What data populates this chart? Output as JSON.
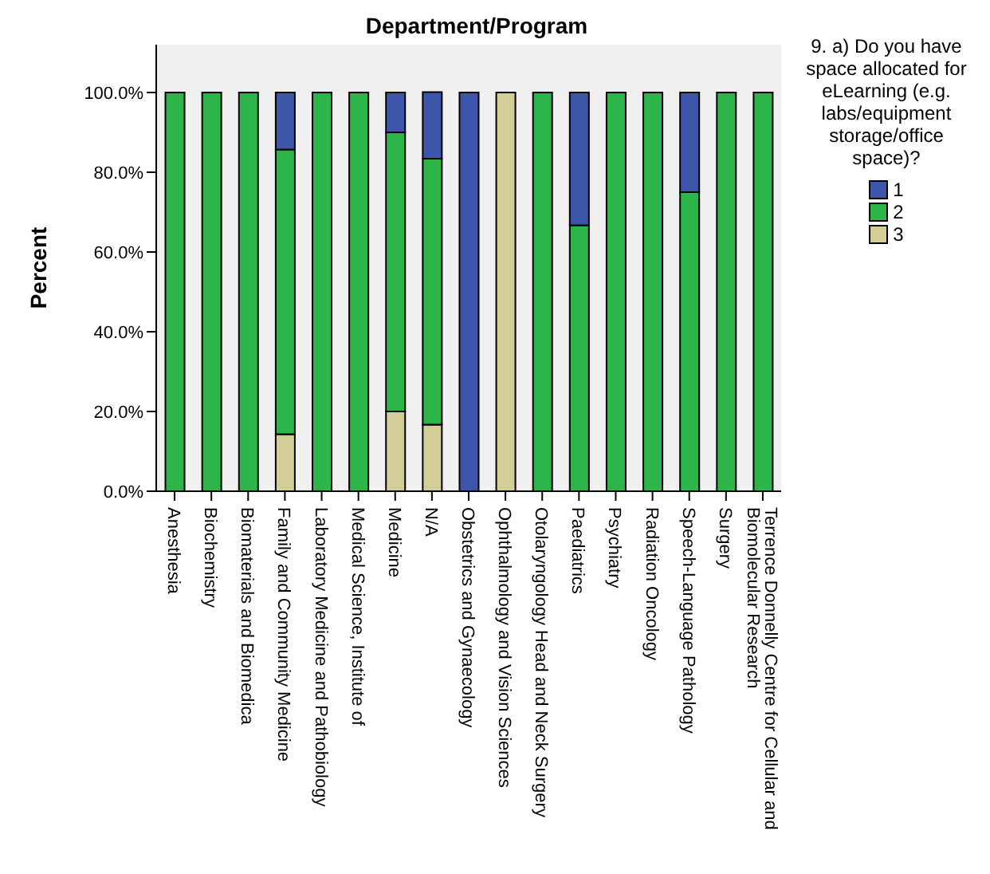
{
  "chart_data": {
    "type": "bar",
    "title": "Department/Program",
    "ylabel": "Percent",
    "legend_title": "9. a) Do you have space allocated for eLearning (e.g. labs/equipment storage/office space)?",
    "categories": [
      "Anesthesia",
      "Biochemistry",
      "Biomaterials and Biomedica",
      "Family and Community Medicine",
      "Laboratory Medicine and Pathobiology",
      "Medical Science, Institute of",
      "Medicine",
      "N/A",
      "Obstetrics and Gynaecology",
      "Ophthalmology and Vision Sciences",
      "Otolaryngology Head and Neck Surgery",
      "Paediatrics",
      "Psychiatry",
      "Radiation Oncology",
      "Speech-Language Pathology",
      "Surgery",
      "Terrence Donnelly Centre for Cellular and Biomolecular Research"
    ],
    "stacked": true,
    "series": [
      {
        "name": "3",
        "color": "#d3ce97",
        "values": [
          0,
          0,
          0,
          14.3,
          0,
          0,
          20,
          16.7,
          0,
          100,
          0,
          0,
          0,
          0,
          0,
          0,
          0
        ]
      },
      {
        "name": "2",
        "color": "#2eb54a",
        "values": [
          100,
          100,
          100,
          71.4,
          100,
          100,
          70,
          66.7,
          0,
          0,
          100,
          66.7,
          100,
          100,
          75,
          100,
          100
        ]
      },
      {
        "name": "1",
        "color": "#3d56aa",
        "values": [
          0,
          0,
          0,
          14.3,
          0,
          0,
          10,
          16.7,
          100,
          0,
          0,
          33.3,
          0,
          0,
          25,
          0,
          0
        ]
      }
    ],
    "ylim": [
      0,
      112
    ],
    "yticks": [
      {
        "value": 0,
        "label": "0.0%"
      },
      {
        "value": 20,
        "label": "20.0%"
      },
      {
        "value": 40,
        "label": "40.0%"
      },
      {
        "value": 60,
        "label": "60.0%"
      },
      {
        "value": 80,
        "label": "80.0%"
      },
      {
        "value": 100,
        "label": "100.0%"
      }
    ],
    "grid": false,
    "legend": "top right"
  }
}
